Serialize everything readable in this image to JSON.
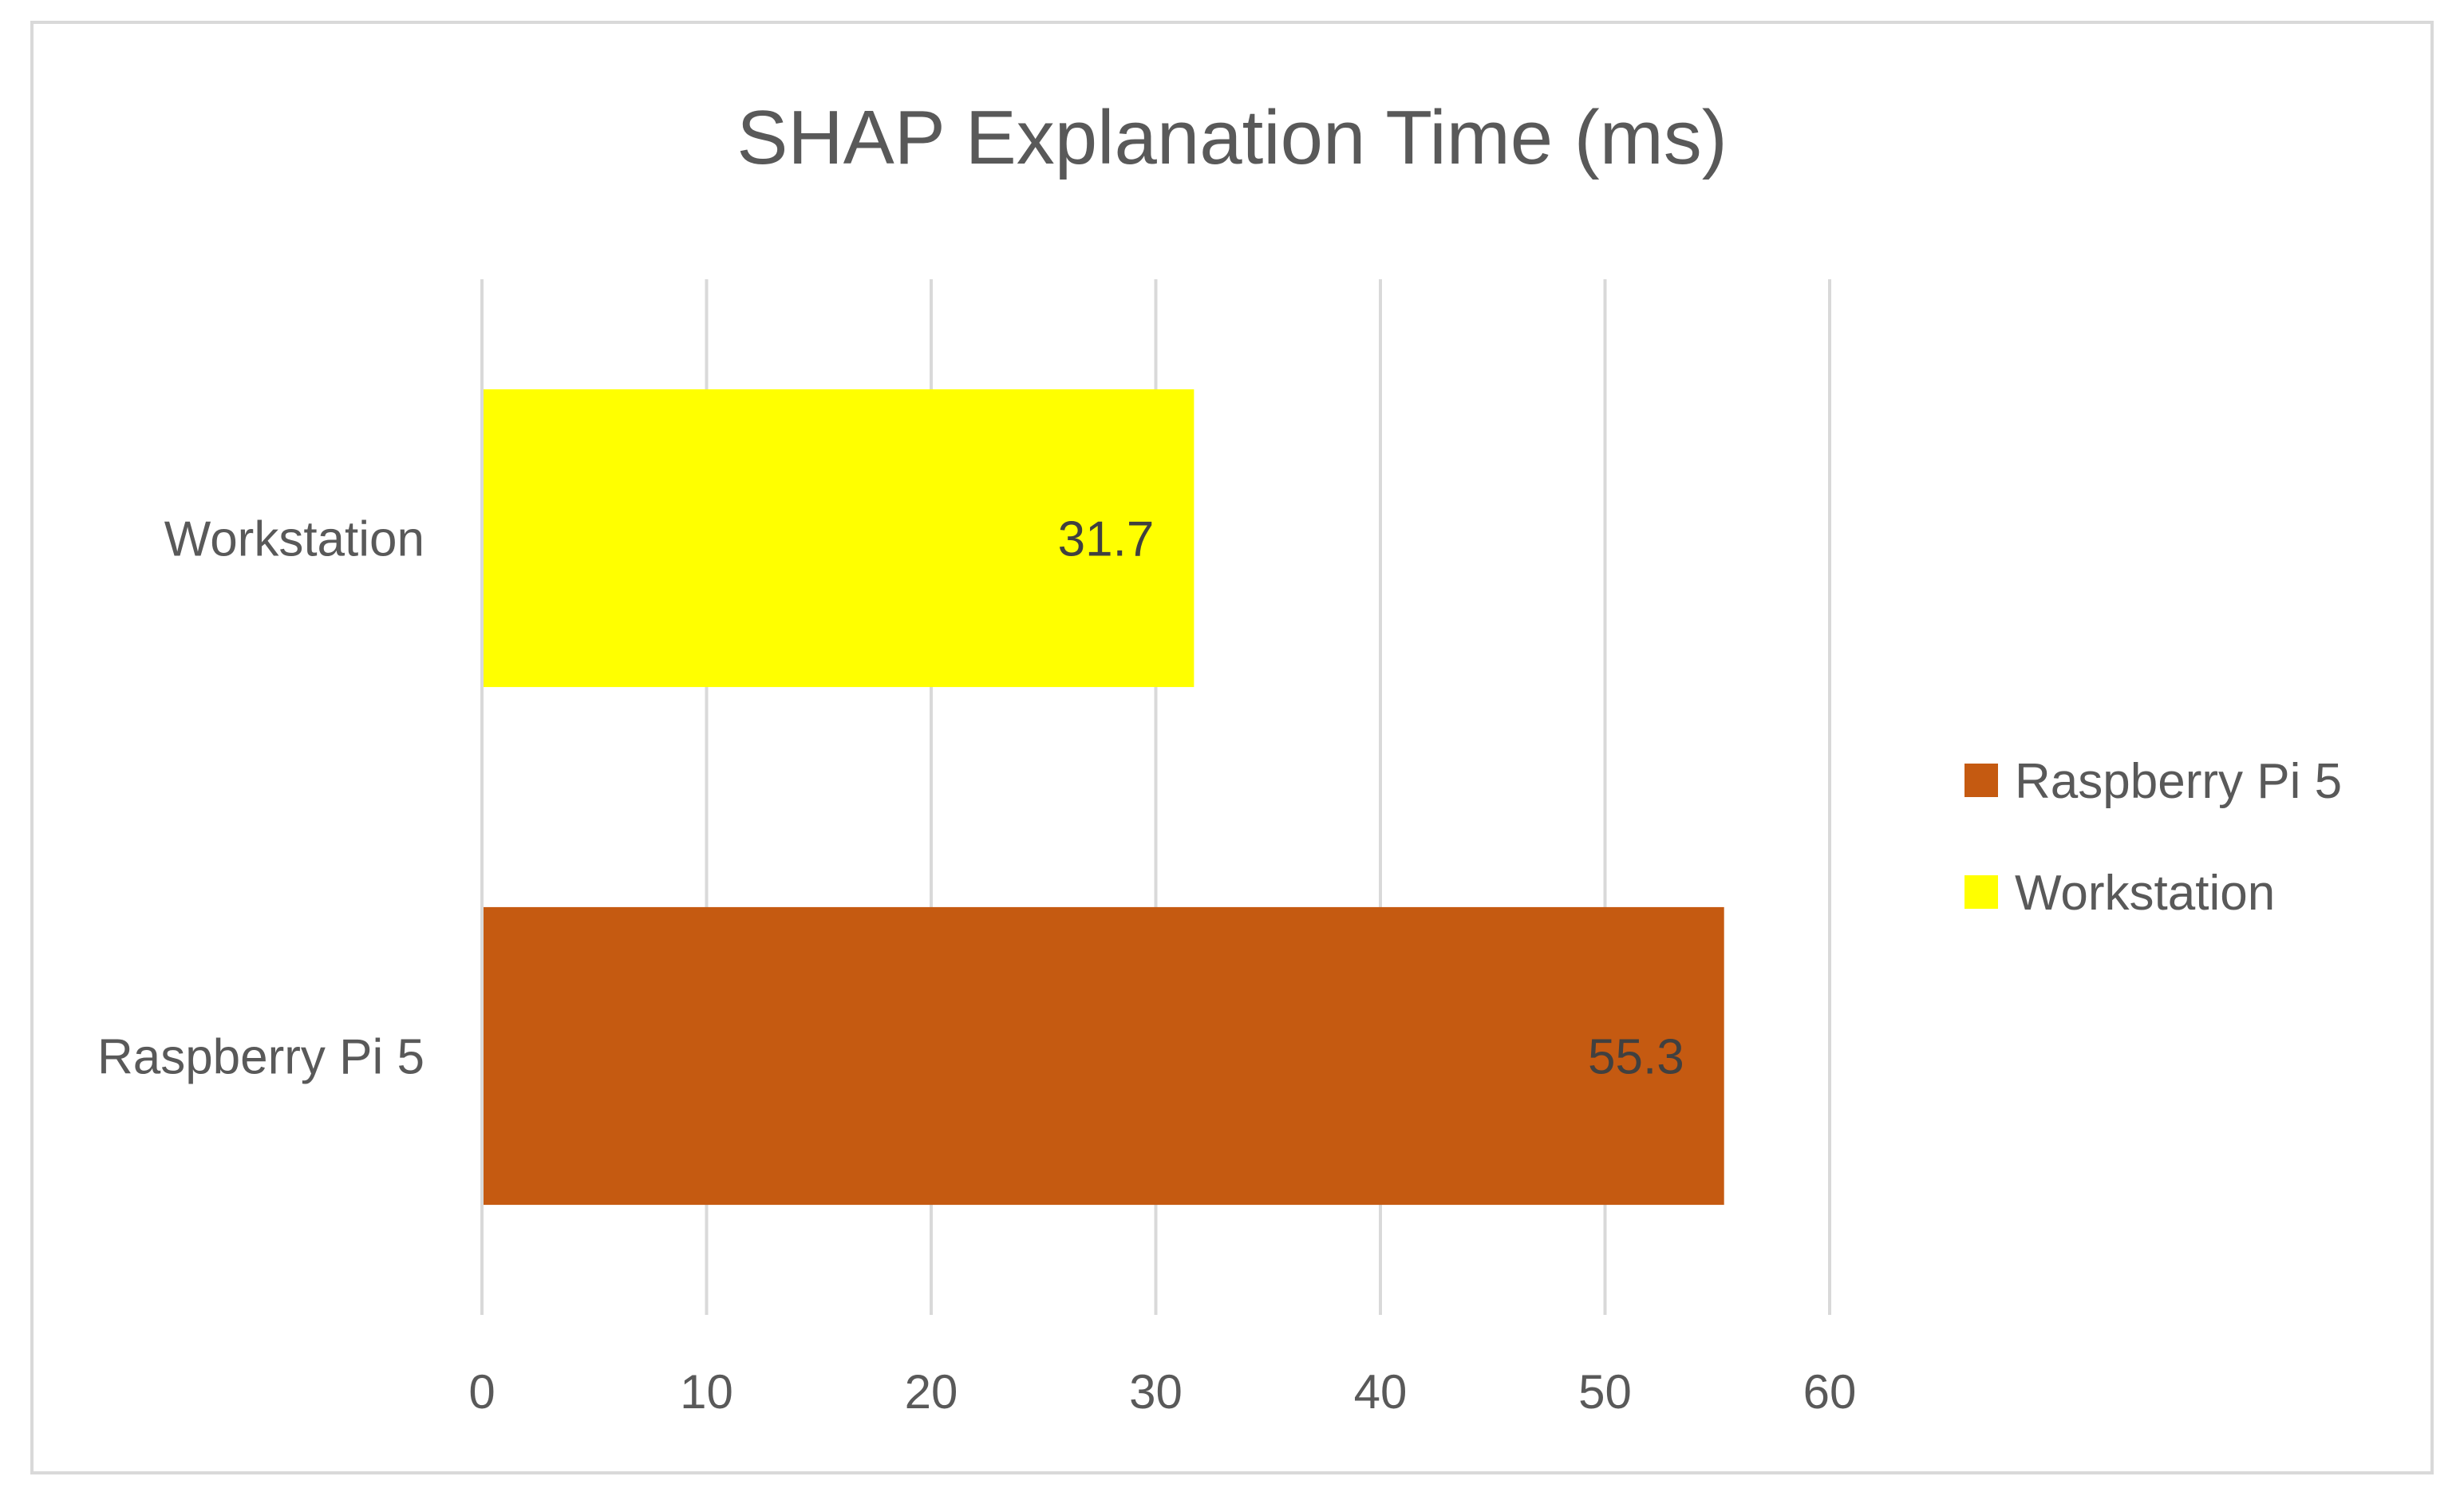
{
  "chart_data": {
    "type": "bar",
    "orientation": "horizontal",
    "title": "SHAP Explanation Time (ms)",
    "xlabel": "",
    "ylabel": "",
    "categories": [
      "Raspberry Pi 5",
      "Workstation"
    ],
    "values": [
      55.3,
      31.7
    ],
    "bar_colors": [
      "#c55a11",
      "#ffff00"
    ],
    "data_labels": [
      "55.3",
      "31.7"
    ],
    "xlim": [
      0,
      60
    ],
    "xticks": [
      0,
      10,
      20,
      30,
      40,
      50,
      60
    ],
    "grid": true,
    "legend": {
      "placement": "right",
      "entries": [
        {
          "label": "Raspberry Pi 5",
          "color": "#c55a11"
        },
        {
          "label": "Workstation",
          "color": "#ffff00"
        }
      ]
    },
    "colors": {
      "text": "#595959",
      "data_label": "#404040",
      "grid": "#d9d9d9",
      "border": "#d9d9d9"
    }
  }
}
